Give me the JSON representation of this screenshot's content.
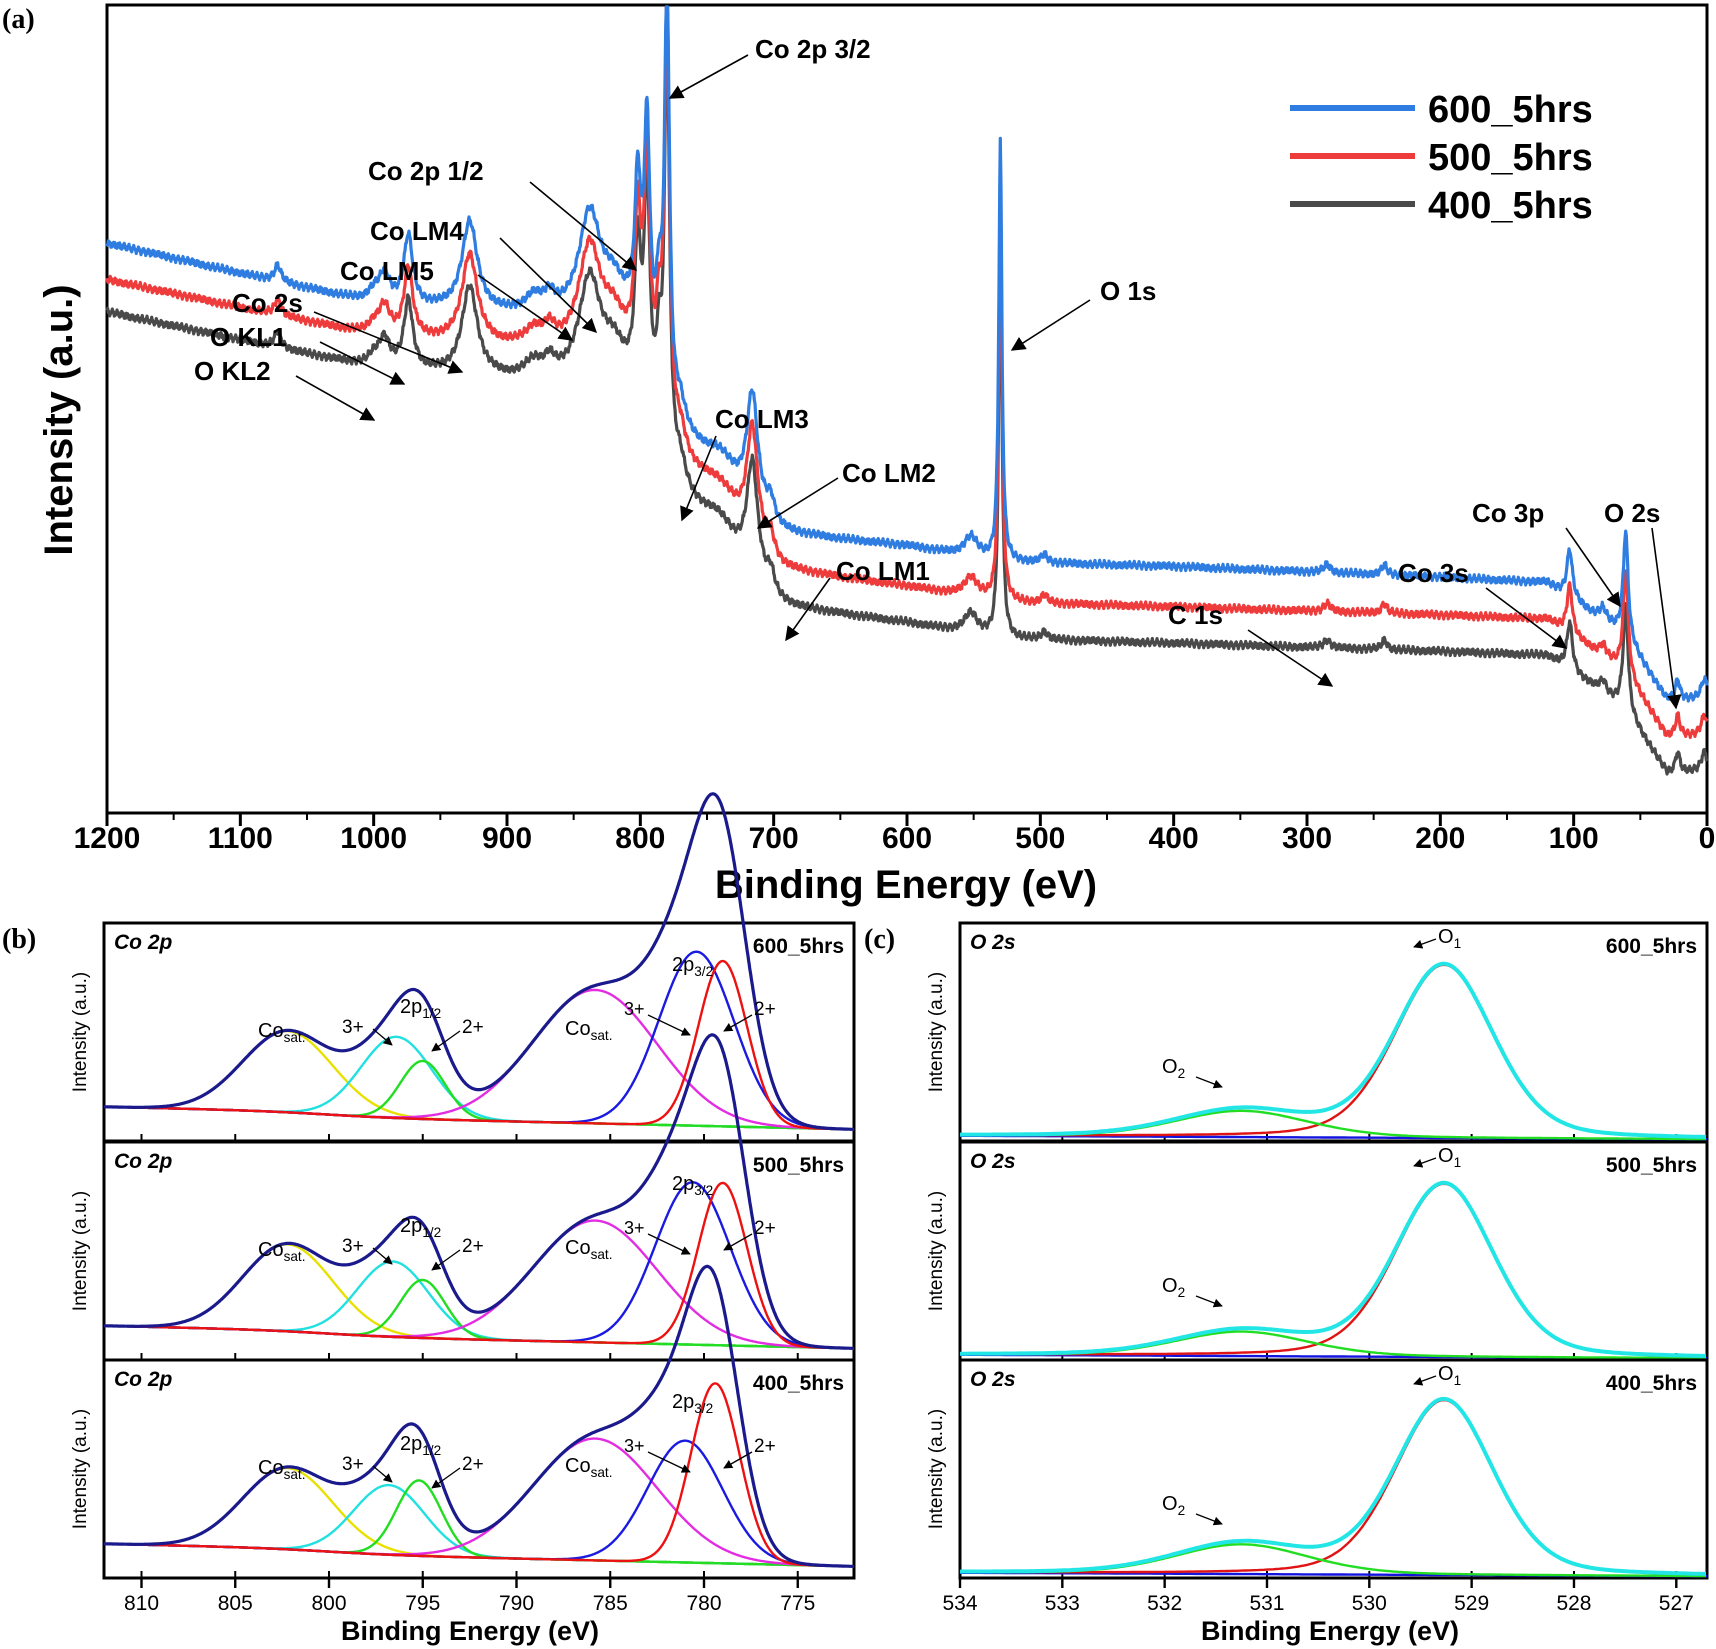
{
  "chart_data": [
    {
      "panel": "(a)",
      "type": "line",
      "xlabel": "Binding Energy (eV)",
      "ylabel": "Intensity (a.u.)",
      "xlim": [
        1200,
        0
      ],
      "xticks": [
        "1200",
        "1100",
        "1000",
        "900",
        "800",
        "700",
        "600",
        "500",
        "400",
        "300",
        "200",
        "100",
        "0"
      ],
      "legend_position": "top-right",
      "series": [
        {
          "name": "600_5hrs",
          "color": "#2f7de1",
          "baseline": [
            [
              1200,
              0.705
            ],
            [
              1000,
              0.63
            ],
            [
              800,
              0.6
            ],
            [
              776,
              0.47
            ],
            [
              700,
              0.345
            ],
            [
              600,
              0.33
            ],
            [
              530,
              0.31
            ],
            [
              400,
              0.305
            ],
            [
              200,
              0.292
            ],
            [
              120,
              0.285
            ],
            [
              62,
              0.22
            ],
            [
              30,
              0.14
            ],
            [
              0,
              0.14
            ]
          ]
        },
        {
          "name": "500_5hrs",
          "color": "#ee3b3b",
          "baseline": [
            [
              1200,
              0.66
            ],
            [
              1000,
              0.59
            ],
            [
              800,
              0.56
            ],
            [
              776,
              0.44
            ],
            [
              700,
              0.3
            ],
            [
              600,
              0.28
            ],
            [
              530,
              0.26
            ],
            [
              400,
              0.255
            ],
            [
              200,
              0.245
            ],
            [
              120,
              0.24
            ],
            [
              62,
              0.175
            ],
            [
              30,
              0.095
            ],
            [
              0,
              0.095
            ]
          ]
        },
        {
          "name": "400_5hrs",
          "color": "#4a4a4a",
          "baseline": [
            [
              1200,
              0.62
            ],
            [
              1000,
              0.55
            ],
            [
              800,
              0.52
            ],
            [
              776,
              0.4
            ],
            [
              700,
              0.255
            ],
            [
              600,
              0.235
            ],
            [
              530,
              0.215
            ],
            [
              400,
              0.21
            ],
            [
              200,
              0.2
            ],
            [
              120,
              0.195
            ],
            [
              62,
              0.13
            ],
            [
              30,
              0.05
            ],
            [
              0,
              0.05
            ]
          ]
        }
      ],
      "peaks": [
        {
          "x": 1072,
          "h": 0.02,
          "w": 3
        },
        {
          "x": 1000,
          "h": 0.012,
          "w": 5
        },
        {
          "x": 992,
          "h": 0.035,
          "w": 5
        },
        {
          "x": 974,
          "h": 0.085,
          "w": 4
        },
        {
          "x": 928,
          "h": 0.11,
          "w": 7
        },
        {
          "x": 880,
          "h": 0.02,
          "w": 8
        },
        {
          "x": 868,
          "h": 0.02,
          "w": 5
        },
        {
          "x": 838,
          "h": 0.13,
          "w": 10
        },
        {
          "x": 820,
          "h": 0.04,
          "w": 10
        },
        {
          "x": 802,
          "h": 0.16,
          "w": 2.5
        },
        {
          "x": 795,
          "h": 0.26,
          "w": 2.5
        },
        {
          "x": 786,
          "h": 0.09,
          "w": 2.5
        },
        {
          "x": 780,
          "h": 0.52,
          "w": 2.2
        },
        {
          "x": 770,
          "h": 0.03,
          "w": 5
        },
        {
          "x": 740,
          "h": 0.03,
          "w": 15
        },
        {
          "x": 716,
          "h": 0.14,
          "w": 5
        },
        {
          "x": 702,
          "h": 0.03,
          "w": 4
        },
        {
          "x": 552,
          "h": 0.025,
          "w": 6
        },
        {
          "x": 530,
          "h": 0.52,
          "w": 1.4
        },
        {
          "x": 497,
          "h": 0.01,
          "w": 3
        },
        {
          "x": 285,
          "h": 0.01,
          "w": 3
        },
        {
          "x": 242,
          "h": 0.012,
          "w": 2.5
        },
        {
          "x": 103,
          "h": 0.06,
          "w": 2.5
        },
        {
          "x": 78,
          "h": 0.015,
          "w": 3
        },
        {
          "x": 61,
          "h": 0.13,
          "w": 2.2
        },
        {
          "x": 22,
          "h": 0.025,
          "w": 2
        },
        {
          "x": 2,
          "h": 0.025,
          "w": 3
        }
      ],
      "annotations": [
        {
          "text": "Co 2p 3/2"
        },
        {
          "text": "Co 2p 1/2"
        },
        {
          "text": "Co LM4"
        },
        {
          "text": "Co LM5"
        },
        {
          "text": "Co 2s"
        },
        {
          "text": "O KL1"
        },
        {
          "text": "O KL2"
        },
        {
          "text": "O 1s"
        },
        {
          "text": "Co LM3"
        },
        {
          "text": "Co LM2"
        },
        {
          "text": "Co LM1"
        },
        {
          "text": "C 1s"
        },
        {
          "text": "Co 3s"
        },
        {
          "text": "Co 3p"
        },
        {
          "text": "O 2s"
        }
      ]
    },
    {
      "panel": "(b)",
      "type": "line",
      "xlabel": "Binding Energy (eV)",
      "ylabel": "Intensity (a.u.)",
      "xlim": [
        812,
        772
      ],
      "xticks": [
        "810",
        "805",
        "800",
        "795",
        "790",
        "785",
        "780",
        "775"
      ],
      "region_label": "Co 2p",
      "subplots": [
        {
          "sample": "600_5hrs",
          "components": [
            {
              "name": "Co sat. (2p1/2)",
              "color": "#e8e000",
              "center": 802.2,
              "height": 0.28,
              "width": 2.4
            },
            {
              "name": "3+ (2p1/2)",
              "color": "#22e0e0",
              "center": 796.4,
              "height": 0.28,
              "width": 1.9
            },
            {
              "name": "2+ (2p1/2)",
              "color": "#22dd22",
              "center": 795.0,
              "height": 0.2,
              "width": 1.2
            },
            {
              "name": "Co sat. (2p3/2)",
              "color": "#e22de2",
              "center": 785.8,
              "height": 0.46,
              "width": 3.3
            },
            {
              "name": "3+ (2p3/2)",
              "color": "#1a1ae0",
              "center": 780.4,
              "height": 0.6,
              "width": 2.0
            },
            {
              "name": "2+ (2p3/2)",
              "color": "#ee1111",
              "center": 779.0,
              "height": 0.57,
              "width": 1.3
            }
          ]
        },
        {
          "sample": "500_5hrs",
          "components": [
            {
              "name": "Co sat. (2p1/2)",
              "color": "#e8e000",
              "center": 802.2,
              "height": 0.3,
              "width": 2.4
            },
            {
              "name": "3+ (2p1/2)",
              "color": "#22e0e0",
              "center": 796.6,
              "height": 0.26,
              "width": 1.9
            },
            {
              "name": "2+ (2p1/2)",
              "color": "#22dd22",
              "center": 795.0,
              "height": 0.2,
              "width": 1.2
            },
            {
              "name": "Co sat. (2p3/2)",
              "color": "#e22de2",
              "center": 785.8,
              "height": 0.42,
              "width": 3.3
            },
            {
              "name": "3+ (2p3/2)",
              "color": "#1a1ae0",
              "center": 780.6,
              "height": 0.56,
              "width": 2.0
            },
            {
              "name": "2+ (2p3/2)",
              "color": "#ee1111",
              "center": 779.0,
              "height": 0.56,
              "width": 1.3
            }
          ]
        },
        {
          "sample": "400_5hrs",
          "components": [
            {
              "name": "Co sat. (2p1/2)",
              "color": "#e8e000",
              "center": 802.2,
              "height": 0.28,
              "width": 2.4
            },
            {
              "name": "3+ (2p1/2)",
              "color": "#22e0e0",
              "center": 796.8,
              "height": 0.24,
              "width": 1.9
            },
            {
              "name": "2+ (2p1/2)",
              "color": "#22dd22",
              "center": 795.2,
              "height": 0.26,
              "width": 1.2
            },
            {
              "name": "Co sat. (2p3/2)",
              "color": "#e22de2",
              "center": 785.8,
              "height": 0.42,
              "width": 3.3
            },
            {
              "name": "3+ (2p3/2)",
              "color": "#1a1ae0",
              "center": 781.0,
              "height": 0.42,
              "width": 2.0
            },
            {
              "name": "2+ (2p3/2)",
              "color": "#ee1111",
              "center": 779.4,
              "height": 0.62,
              "width": 1.3
            }
          ]
        }
      ]
    },
    {
      "panel": "(c)",
      "type": "line",
      "xlabel": "Binding Energy (eV)",
      "ylabel": "Intensity (a.u.)",
      "xlim": [
        534,
        526.7
      ],
      "xticks": [
        "534",
        "533",
        "532",
        "531",
        "530",
        "529",
        "528",
        "527"
      ],
      "region_label": "O 2s",
      "subplots": [
        {
          "sample": "600_5hrs",
          "components": [
            {
              "name": "O1",
              "color": "#e01414",
              "center": 529.27,
              "height": 0.99,
              "width": 0.48
            },
            {
              "name": "O2",
              "color": "#22dd22",
              "center": 531.25,
              "height": 0.15,
              "width": 0.65
            }
          ]
        },
        {
          "sample": "500_5hrs",
          "components": [
            {
              "name": "O1",
              "color": "#e01414",
              "center": 529.27,
              "height": 0.99,
              "width": 0.48
            },
            {
              "name": "O2",
              "color": "#22dd22",
              "center": 531.25,
              "height": 0.14,
              "width": 0.65
            }
          ]
        },
        {
          "sample": "400_5hrs",
          "components": [
            {
              "name": "O1",
              "color": "#e01414",
              "center": 529.27,
              "height": 1.0,
              "width": 0.48
            },
            {
              "name": "O2",
              "color": "#22dd22",
              "center": 531.25,
              "height": 0.17,
              "width": 0.65
            }
          ]
        }
      ]
    }
  ],
  "labels": {
    "panel_a": "(a)",
    "panel_b": "(b)",
    "panel_c": "(c)",
    "co2p_label": "Co 2p",
    "o2s_label": "O 2s",
    "co_sat": "Co",
    "co_sat_sub": "sat.",
    "p32_main": "2p",
    "p32_sub": "3/2",
    "p12_main": "2p",
    "p12_sub": "1/2",
    "three_plus": "3+",
    "two_plus": "2+",
    "o1_main": "O",
    "o1_sub": "1",
    "o2_main": "O",
    "o2_sub": "2"
  },
  "colors": {
    "fit_envelope_b": "#1a1a8c",
    "fit_envelope_c": "#22e5e5",
    "background_b": "#8f8f2a",
    "background_c": "#1414e0",
    "sample_label": "#e01414"
  }
}
